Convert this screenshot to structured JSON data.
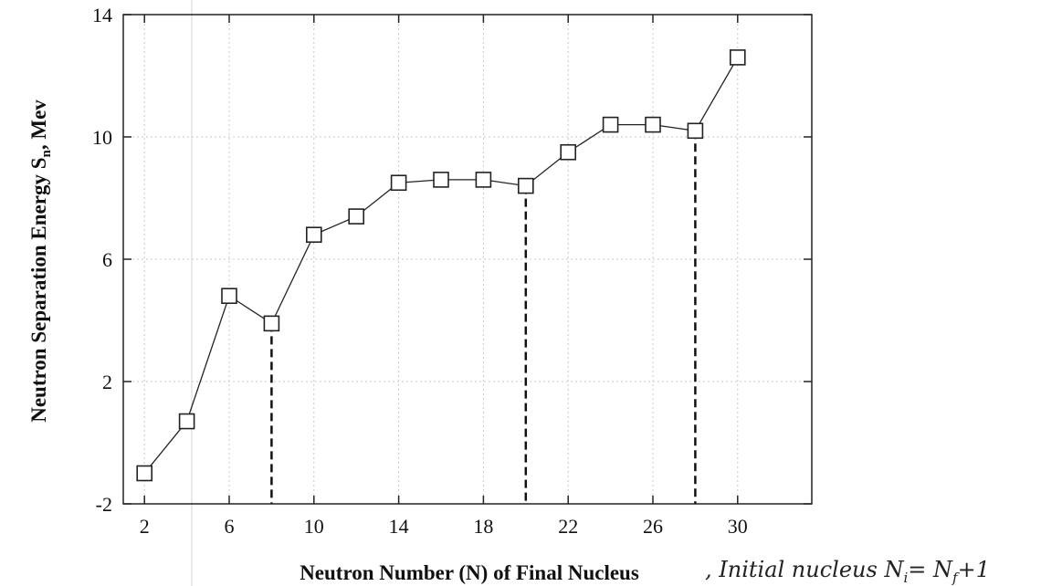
{
  "chart_data": {
    "type": "line",
    "xlabel": "Neutron Number (N) of Final Nucleus",
    "ylabel": "Neutron Separation Energy S",
    "ylabel_sub": "n",
    "ylabel_unit": ", Mev",
    "annotation": ", Initial nucleus N",
    "annotation_sub": "i",
    "annotation_eq": "= N",
    "annotation_sub2": "f",
    "annotation_tail": "+1",
    "xlim": [
      1,
      33.5
    ],
    "ylim": [
      -2,
      14
    ],
    "xticks": [
      2,
      6,
      10,
      14,
      18,
      22,
      26,
      30
    ],
    "yticks": [
      -2,
      2,
      6,
      10,
      14
    ],
    "grid": true,
    "marker": "square",
    "series": [
      {
        "x": [
          2,
          4,
          6,
          8,
          10,
          12,
          14,
          16,
          18,
          20,
          22,
          24,
          26,
          28,
          30
        ],
        "y": [
          -1.0,
          0.7,
          4.8,
          3.9,
          6.8,
          7.4,
          8.5,
          8.6,
          8.6,
          8.4,
          9.5,
          10.4,
          10.4,
          10.2,
          12.6
        ]
      }
    ],
    "dashed_lines_at_x": [
      8,
      20,
      28
    ]
  }
}
